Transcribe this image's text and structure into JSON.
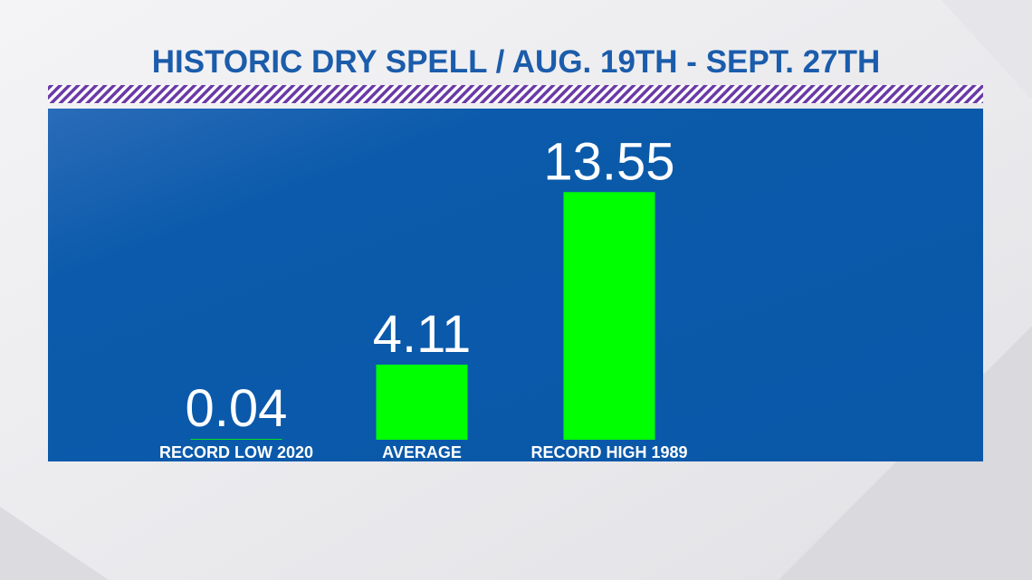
{
  "chart_data": {
    "type": "bar",
    "title": "HISTORIC DRY SPELL / AUG. 19TH - SEPT. 27TH",
    "categories": [
      "RECORD LOW 2020",
      "AVERAGE",
      "RECORD HIGH 1989"
    ],
    "values": [
      0.04,
      4.11,
      13.55
    ],
    "color": "#00ff00"
  }
}
